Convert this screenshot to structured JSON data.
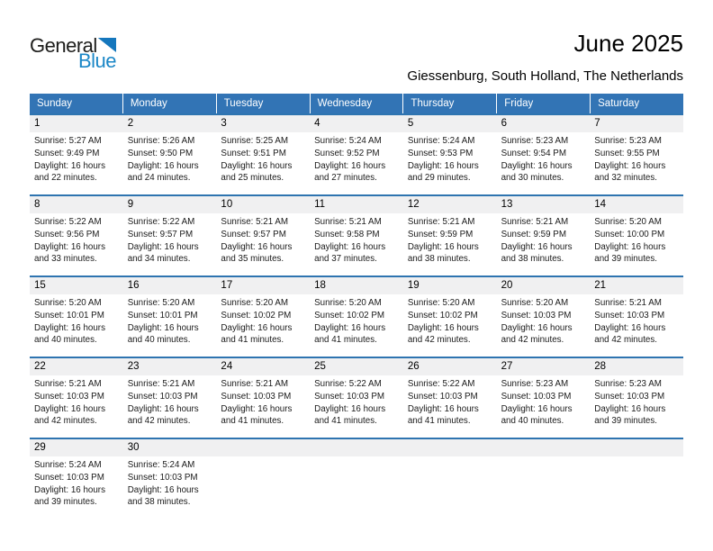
{
  "logo": {
    "part1": "General",
    "part2": "Blue",
    "triangle_color": "#1577bd",
    "text_color": "#1b87c7"
  },
  "page": {
    "title": "June 2025",
    "subtitle": "Giessenburg, South Holland, The Netherlands"
  },
  "colors": {
    "weekday_header_bg": "#3274b5",
    "weekday_header_text": "#ffffff",
    "week_divider": "#2e74b0",
    "day_strip_bg": "#f0f0f1",
    "body_text": "#1a1a1a"
  },
  "calendar": {
    "weekday_headers": [
      "Sunday",
      "Monday",
      "Tuesday",
      "Wednesday",
      "Thursday",
      "Friday",
      "Saturday"
    ],
    "weeks": [
      [
        {
          "day": "1",
          "lines": [
            "Sunrise: 5:27 AM",
            "Sunset: 9:49 PM",
            "Daylight: 16 hours",
            "and 22 minutes."
          ]
        },
        {
          "day": "2",
          "lines": [
            "Sunrise: 5:26 AM",
            "Sunset: 9:50 PM",
            "Daylight: 16 hours",
            "and 24 minutes."
          ]
        },
        {
          "day": "3",
          "lines": [
            "Sunrise: 5:25 AM",
            "Sunset: 9:51 PM",
            "Daylight: 16 hours",
            "and 25 minutes."
          ]
        },
        {
          "day": "4",
          "lines": [
            "Sunrise: 5:24 AM",
            "Sunset: 9:52 PM",
            "Daylight: 16 hours",
            "and 27 minutes."
          ]
        },
        {
          "day": "5",
          "lines": [
            "Sunrise: 5:24 AM",
            "Sunset: 9:53 PM",
            "Daylight: 16 hours",
            "and 29 minutes."
          ]
        },
        {
          "day": "6",
          "lines": [
            "Sunrise: 5:23 AM",
            "Sunset: 9:54 PM",
            "Daylight: 16 hours",
            "and 30 minutes."
          ]
        },
        {
          "day": "7",
          "lines": [
            "Sunrise: 5:23 AM",
            "Sunset: 9:55 PM",
            "Daylight: 16 hours",
            "and 32 minutes."
          ]
        }
      ],
      [
        {
          "day": "8",
          "lines": [
            "Sunrise: 5:22 AM",
            "Sunset: 9:56 PM",
            "Daylight: 16 hours",
            "and 33 minutes."
          ]
        },
        {
          "day": "9",
          "lines": [
            "Sunrise: 5:22 AM",
            "Sunset: 9:57 PM",
            "Daylight: 16 hours",
            "and 34 minutes."
          ]
        },
        {
          "day": "10",
          "lines": [
            "Sunrise: 5:21 AM",
            "Sunset: 9:57 PM",
            "Daylight: 16 hours",
            "and 35 minutes."
          ]
        },
        {
          "day": "11",
          "lines": [
            "Sunrise: 5:21 AM",
            "Sunset: 9:58 PM",
            "Daylight: 16 hours",
            "and 37 minutes."
          ]
        },
        {
          "day": "12",
          "lines": [
            "Sunrise: 5:21 AM",
            "Sunset: 9:59 PM",
            "Daylight: 16 hours",
            "and 38 minutes."
          ]
        },
        {
          "day": "13",
          "lines": [
            "Sunrise: 5:21 AM",
            "Sunset: 9:59 PM",
            "Daylight: 16 hours",
            "and 38 minutes."
          ]
        },
        {
          "day": "14",
          "lines": [
            "Sunrise: 5:20 AM",
            "Sunset: 10:00 PM",
            "Daylight: 16 hours",
            "and 39 minutes."
          ]
        }
      ],
      [
        {
          "day": "15",
          "lines": [
            "Sunrise: 5:20 AM",
            "Sunset: 10:01 PM",
            "Daylight: 16 hours",
            "and 40 minutes."
          ]
        },
        {
          "day": "16",
          "lines": [
            "Sunrise: 5:20 AM",
            "Sunset: 10:01 PM",
            "Daylight: 16 hours",
            "and 40 minutes."
          ]
        },
        {
          "day": "17",
          "lines": [
            "Sunrise: 5:20 AM",
            "Sunset: 10:02 PM",
            "Daylight: 16 hours",
            "and 41 minutes."
          ]
        },
        {
          "day": "18",
          "lines": [
            "Sunrise: 5:20 AM",
            "Sunset: 10:02 PM",
            "Daylight: 16 hours",
            "and 41 minutes."
          ]
        },
        {
          "day": "19",
          "lines": [
            "Sunrise: 5:20 AM",
            "Sunset: 10:02 PM",
            "Daylight: 16 hours",
            "and 42 minutes."
          ]
        },
        {
          "day": "20",
          "lines": [
            "Sunrise: 5:20 AM",
            "Sunset: 10:03 PM",
            "Daylight: 16 hours",
            "and 42 minutes."
          ]
        },
        {
          "day": "21",
          "lines": [
            "Sunrise: 5:21 AM",
            "Sunset: 10:03 PM",
            "Daylight: 16 hours",
            "and 42 minutes."
          ]
        }
      ],
      [
        {
          "day": "22",
          "lines": [
            "Sunrise: 5:21 AM",
            "Sunset: 10:03 PM",
            "Daylight: 16 hours",
            "and 42 minutes."
          ]
        },
        {
          "day": "23",
          "lines": [
            "Sunrise: 5:21 AM",
            "Sunset: 10:03 PM",
            "Daylight: 16 hours",
            "and 42 minutes."
          ]
        },
        {
          "day": "24",
          "lines": [
            "Sunrise: 5:21 AM",
            "Sunset: 10:03 PM",
            "Daylight: 16 hours",
            "and 41 minutes."
          ]
        },
        {
          "day": "25",
          "lines": [
            "Sunrise: 5:22 AM",
            "Sunset: 10:03 PM",
            "Daylight: 16 hours",
            "and 41 minutes."
          ]
        },
        {
          "day": "26",
          "lines": [
            "Sunrise: 5:22 AM",
            "Sunset: 10:03 PM",
            "Daylight: 16 hours",
            "and 41 minutes."
          ]
        },
        {
          "day": "27",
          "lines": [
            "Sunrise: 5:23 AM",
            "Sunset: 10:03 PM",
            "Daylight: 16 hours",
            "and 40 minutes."
          ]
        },
        {
          "day": "28",
          "lines": [
            "Sunrise: 5:23 AM",
            "Sunset: 10:03 PM",
            "Daylight: 16 hours",
            "and 39 minutes."
          ]
        }
      ],
      [
        {
          "day": "29",
          "lines": [
            "Sunrise: 5:24 AM",
            "Sunset: 10:03 PM",
            "Daylight: 16 hours",
            "and 39 minutes."
          ]
        },
        {
          "day": "30",
          "lines": [
            "Sunrise: 5:24 AM",
            "Sunset: 10:03 PM",
            "Daylight: 16 hours",
            "and 38 minutes."
          ]
        },
        null,
        null,
        null,
        null,
        null
      ]
    ]
  }
}
